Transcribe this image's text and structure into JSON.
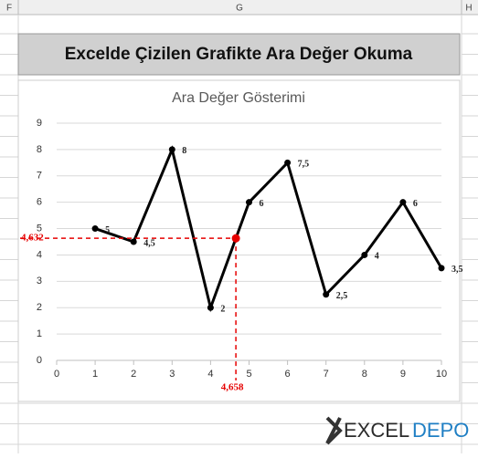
{
  "sheet": {
    "columns": [
      "F",
      "G",
      "H"
    ],
    "banner": "Excelde Çizilen Grafikte Ara Değer Okuma",
    "logo": [
      "EXCEL",
      "DEPO"
    ]
  },
  "chart_data": {
    "type": "line",
    "title": "Ara Değer Gösterimi",
    "x": [
      1,
      2,
      3,
      4,
      5,
      6,
      7,
      8,
      9,
      10
    ],
    "series": [
      {
        "color": "#000000",
        "values": [
          5,
          4.5,
          8,
          2,
          6,
          7.5,
          2.5,
          4,
          6,
          3.5
        ],
        "value_labels": [
          "5",
          "4,5",
          "8",
          "2",
          "6",
          "7,5",
          "2,5",
          "4",
          "6",
          "3,5"
        ]
      }
    ],
    "xlim": [
      0,
      10
    ],
    "xticks": [
      0,
      1,
      2,
      3,
      4,
      5,
      6,
      7,
      8,
      9,
      10
    ],
    "ylim": [
      0,
      9
    ],
    "yticks": [
      0,
      1,
      2,
      3,
      4,
      5,
      6,
      7,
      8,
      9
    ],
    "grid": true,
    "annotation": {
      "x": 4.658,
      "y": 4.632,
      "x_label": "4,658",
      "y_label": "4,632",
      "color": "#e60000"
    }
  }
}
